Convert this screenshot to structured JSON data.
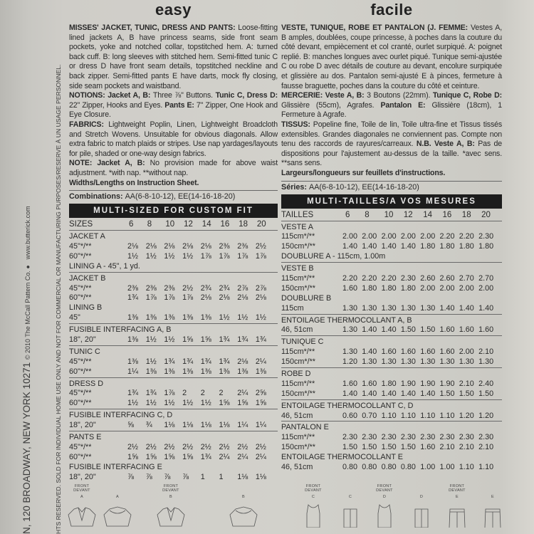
{
  "spine": {
    "website": "www.butterick.com",
    "copyright": "© 2010 The McCall Pattern Co. ●",
    "address": "N, 120 BROADWAY, NEW YORK 10271",
    "rights": "HTS RESERVED.  SOLD FOR INDIVIDUAL HOME USE ONLY AND NOT FOR COMMERCIAL OR MANUFACTURING PURPOSES/RESERVE À UN USAGE PERSONNEL."
  },
  "english": {
    "title": "easy",
    "paragraphs": [
      [
        {
          "b": true,
          "t": "MISSES' JACKET, TUNIC, DRESS AND PANTS: "
        },
        {
          "b": false,
          "t": "Loose-fitting lined jackets A, B have princess seams, side front seam pockets, yoke and notched collar, topstitched hem. A: turned back cuff. B: long sleeves with stitched hem. Semi-fitted tunic C or dress D have front seam details, topstitched neckline and back zipper. Semi-fitted pants E have darts, mock fly closing, side seam pockets and waistband."
        }
      ],
      [
        {
          "b": true,
          "t": "NOTIONS: Jacket A, B: "
        },
        {
          "b": false,
          "t": "Three ⅞\" Buttons. "
        },
        {
          "b": true,
          "t": "Tunic C, Dress D: "
        },
        {
          "b": false,
          "t": "22\" Zipper, Hooks and Eyes. "
        },
        {
          "b": true,
          "t": "Pants E: "
        },
        {
          "b": false,
          "t": "7\" Zipper, One Hook and Eye Closure."
        }
      ],
      [
        {
          "b": true,
          "t": "FABRICS: "
        },
        {
          "b": false,
          "t": "Lightweight Poplin, Linen, Lightweight Broadcloth and Stretch Wovens. Unsuitable for obvious diagonals. Allow extra fabric to match plaids or stripes. Use nap yardages/layouts for pile, shaded or one-way design fabrics."
        }
      ],
      [
        {
          "b": true,
          "t": "NOTE: Jacket A, B: "
        },
        {
          "b": false,
          "t": "No provision made for above waist adjustment. *with nap. **without nap."
        }
      ],
      [
        {
          "b": true,
          "t": "Widths/Lengths on Instruction Sheet."
        }
      ]
    ],
    "combinations": [
      {
        "b": true,
        "t": "Combinations: "
      },
      {
        "b": false,
        "t": "AA(6-8-10-12), EE(14-16-18-20)"
      }
    ],
    "bar": "MULTI-SIZED FOR CUSTOM FIT",
    "sizes_label": "SIZES",
    "sizes": [
      "6",
      "8",
      "10",
      "12",
      "14",
      "16",
      "18",
      "20"
    ],
    "groups": [
      [
        {
          "label": "JACKET A"
        },
        {
          "label": "45\"*/**",
          "values": [
            "2⅛",
            "2⅛",
            "2⅛",
            "2⅛",
            "2⅛",
            "2⅜",
            "2⅜",
            "2½"
          ]
        },
        {
          "label": "60\"*/**",
          "values": [
            "1½",
            "1½",
            "1½",
            "1½",
            "1⅞",
            "1⅞",
            "1⅞",
            "1⅞"
          ]
        },
        {
          "label": "LINING A - 45\", 1 yd."
        }
      ],
      [
        {
          "label": "JACKET B"
        },
        {
          "label": "45\"*/**",
          "values": [
            "2⅜",
            "2⅜",
            "2⅜",
            "2½",
            "2¾",
            "2¾",
            "2⅞",
            "2⅞"
          ]
        },
        {
          "label": "60\"*/**",
          "values": [
            "1¾",
            "1⅞",
            "1⅞",
            "1⅞",
            "2⅛",
            "2⅛",
            "2⅛",
            "2⅛"
          ]
        },
        {
          "label": "LINING B"
        },
        {
          "label": "45\"",
          "values": [
            "1⅜",
            "1⅜",
            "1⅜",
            "1⅜",
            "1⅜",
            "1½",
            "1½",
            "1½"
          ]
        }
      ],
      [
        {
          "label": "FUSIBLE INTERFACING A, B"
        },
        {
          "label": "18\", 20\"",
          "values": [
            "1⅜",
            "1½",
            "1½",
            "1⅝",
            "1⅝",
            "1¾",
            "1¾",
            "1¾"
          ]
        }
      ],
      [
        {
          "label": "TUNIC C"
        },
        {
          "label": "45\"*/**",
          "values": [
            "1⅜",
            "1½",
            "1¾",
            "1¾",
            "1¾",
            "1¾",
            "2⅛",
            "2¼"
          ]
        },
        {
          "label": "60\"*/**",
          "values": [
            "1¼",
            "1⅜",
            "1⅜",
            "1⅜",
            "1⅜",
            "1⅜",
            "1⅜",
            "1⅜"
          ]
        }
      ],
      [
        {
          "label": "DRESS D"
        },
        {
          "label": "45\"*/**",
          "values": [
            "1¾",
            "1¾",
            "1⅞",
            "2",
            "2",
            "2",
            "2¼",
            "2⅝"
          ]
        },
        {
          "label": "60\"*/**",
          "values": [
            "1½",
            "1½",
            "1½",
            "1½",
            "1½",
            "1⅝",
            "1⅝",
            "1⅝"
          ]
        }
      ],
      [
        {
          "label": "FUSIBLE INTERFACING C, D"
        },
        {
          "label": "18\", 20\"",
          "values": [
            "⅝",
            "¾",
            "1⅛",
            "1⅛",
            "1⅛",
            "1⅛",
            "1¼",
            "1¼"
          ]
        }
      ],
      [
        {
          "label": "PANTS E"
        },
        {
          "label": "45\"*/**",
          "values": [
            "2½",
            "2½",
            "2½",
            "2½",
            "2½",
            "2½",
            "2½",
            "2½"
          ]
        },
        {
          "label": "60\"*/**",
          "values": [
            "1⅝",
            "1⅝",
            "1⅝",
            "1⅝",
            "1¾",
            "2¼",
            "2¼",
            "2¼"
          ]
        },
        {
          "label": "FUSIBLE INTERFACING E"
        },
        {
          "label": "18\", 20\"",
          "values": [
            "⅞",
            "⅞",
            "⅞",
            "⅞",
            "1",
            "1",
            "1⅛",
            "1⅛"
          ]
        }
      ]
    ]
  },
  "french": {
    "title": "facile",
    "paragraphs": [
      [
        {
          "b": true,
          "t": "VESTE, TUNIQUE, ROBE ET PANTALON (J. FEMME: "
        },
        {
          "b": false,
          "t": "Vestes A, B amples, doublées, coupe princesse, à poches dans la couture du côté devant, empiècement et col cranté, ourlet surpiqué. A: poignet replié. B: manches longues avec ourlet piqué. Tunique semi-ajustée C ou robe D avec détails de couture au devant, encolure surpiquée et glissière au dos. Pantalon semi-ajusté E à pinces, fermeture à fausse braguette, poches dans la couture du côté et ceinture."
        }
      ],
      [
        {
          "b": true,
          "t": "MERCERIE: Veste A, B: "
        },
        {
          "b": false,
          "t": "3 Boutons (22mm). "
        },
        {
          "b": true,
          "t": "Tunique C, Robe D: "
        },
        {
          "b": false,
          "t": "Glissière (55cm), Agrafes. "
        },
        {
          "b": true,
          "t": "Pantalon E: "
        },
        {
          "b": false,
          "t": "Glissière (18cm), 1 Fermeture à Agrafe."
        }
      ],
      [
        {
          "b": true,
          "t": "TISSUS: "
        },
        {
          "b": false,
          "t": "Popeline fine, Toile de lin, Toile ultra-fine et Tissus tissés extensibles. Grandes diagonales ne conviennent pas. Compte non tenu des raccords de rayures/carreaux. "
        },
        {
          "b": true,
          "t": "N.B. Veste A, B: "
        },
        {
          "b": false,
          "t": "Pas de dispositions pour l'ajustement au-dessus de la taille. *avec sens. **sans sens."
        }
      ],
      [
        {
          "b": true,
          "t": "Largeurs/longueurs sur feuillets d'instructions."
        }
      ]
    ],
    "combinations": [
      {
        "b": true,
        "t": "Séries: "
      },
      {
        "b": false,
        "t": "AA(6-8-10-12), EE(14-16-18-20)"
      }
    ],
    "bar": "MULTI-TAILLES/A VOS MESURES",
    "sizes_label": "TAILLES",
    "sizes": [
      "6",
      "8",
      "10",
      "12",
      "14",
      "16",
      "18",
      "20"
    ],
    "groups": [
      [
        {
          "label": "VESTE A"
        },
        {
          "label": "115cm*/**",
          "values": [
            "2.00",
            "2.00",
            "2.00",
            "2.00",
            "2.00",
            "2.20",
            "2.20",
            "2.30"
          ]
        },
        {
          "label": "150cm*/**",
          "values": [
            "1.40",
            "1.40",
            "1.40",
            "1.40",
            "1.80",
            "1.80",
            "1.80",
            "1.80"
          ]
        },
        {
          "label": "DOUBLURE A - 115cm, 1.00m"
        }
      ],
      [
        {
          "label": "VESTE B"
        },
        {
          "label": "115cm*/**",
          "values": [
            "2.20",
            "2.20",
            "2.20",
            "2.30",
            "2.60",
            "2.60",
            "2.70",
            "2.70"
          ]
        },
        {
          "label": "150cm*/**",
          "values": [
            "1.60",
            "1.80",
            "1.80",
            "1.80",
            "2.00",
            "2.00",
            "2.00",
            "2.00"
          ]
        },
        {
          "label": "DOUBLURE B"
        },
        {
          "label": "115cm",
          "values": [
            "1.30",
            "1.30",
            "1.30",
            "1.30",
            "1.30",
            "1.40",
            "1.40",
            "1.40"
          ]
        }
      ],
      [
        {
          "label": "ENTOILAGE THERMOCOLLANT A, B"
        },
        {
          "label": "46, 51cm",
          "values": [
            "1.30",
            "1.40",
            "1.40",
            "1.50",
            "1.50",
            "1.60",
            "1.60",
            "1.60"
          ]
        }
      ],
      [
        {
          "label": "TUNIQUE C"
        },
        {
          "label": "115cm*/**",
          "values": [
            "1.30",
            "1.40",
            "1.60",
            "1.60",
            "1.60",
            "1.60",
            "2.00",
            "2.10"
          ]
        },
        {
          "label": "150cm*/**",
          "values": [
            "1.20",
            "1.30",
            "1.30",
            "1.30",
            "1.30",
            "1.30",
            "1.30",
            "1.30"
          ]
        }
      ],
      [
        {
          "label": "ROBE D"
        },
        {
          "label": "115cm*/**",
          "values": [
            "1.60",
            "1.60",
            "1.80",
            "1.90",
            "1.90",
            "1.90",
            "2.10",
            "2.40"
          ]
        },
        {
          "label": "150cm*/**",
          "values": [
            "1.40",
            "1.40",
            "1.40",
            "1.40",
            "1.40",
            "1.50",
            "1.50",
            "1.50"
          ]
        }
      ],
      [
        {
          "label": "ENTOILAGE THERMOCOLLANT C, D"
        },
        {
          "label": "46, 51cm",
          "values": [
            "0.60",
            "0.70",
            "1.10",
            "1.10",
            "1.10",
            "1.10",
            "1.20",
            "1.20"
          ]
        }
      ],
      [
        {
          "label": "PANTALON E"
        },
        {
          "label": "115cm*/**",
          "values": [
            "2.30",
            "2.30",
            "2.30",
            "2.30",
            "2.30",
            "2.30",
            "2.30",
            "2.30"
          ]
        },
        {
          "label": "150cm*/**",
          "values": [
            "1.50",
            "1.50",
            "1.50",
            "1.50",
            "1.60",
            "2.10",
            "2.10",
            "2.10"
          ]
        },
        {
          "label": "ENTOILAGE THERMOCOLLANT E"
        },
        {
          "label": "46, 51cm",
          "values": [
            "0.80",
            "0.80",
            "0.80",
            "0.80",
            "1.00",
            "1.00",
            "1.10",
            "1.10"
          ]
        }
      ]
    ]
  },
  "sketches": [
    {
      "view": [
        "FRONT",
        "DEVANT"
      ],
      "letter": "A",
      "shape": "jacket-short"
    },
    {
      "view": [],
      "letter": "A",
      "shape": "jacket-short-back"
    },
    {
      "view": [
        "FRONT",
        "DEVANT"
      ],
      "letter": "B",
      "shape": "jacket-long"
    },
    {
      "view": [],
      "letter": "B",
      "shape": "jacket-long-back"
    },
    {
      "view": [
        "FRONT",
        "DEVANT"
      ],
      "letter": "C",
      "shape": "tunic"
    },
    {
      "view": [],
      "letter": "C",
      "shape": "tunic-back"
    },
    {
      "view": [
        "FRONT",
        "DEVANT"
      ],
      "letter": "D",
      "shape": "dress"
    },
    {
      "view": [],
      "letter": "D",
      "shape": "dress-back"
    },
    {
      "view": [
        "FRONT",
        "DEVANT"
      ],
      "letter": "E",
      "shape": "pants"
    },
    {
      "view": [],
      "letter": "E",
      "shape": "pants-back"
    }
  ]
}
